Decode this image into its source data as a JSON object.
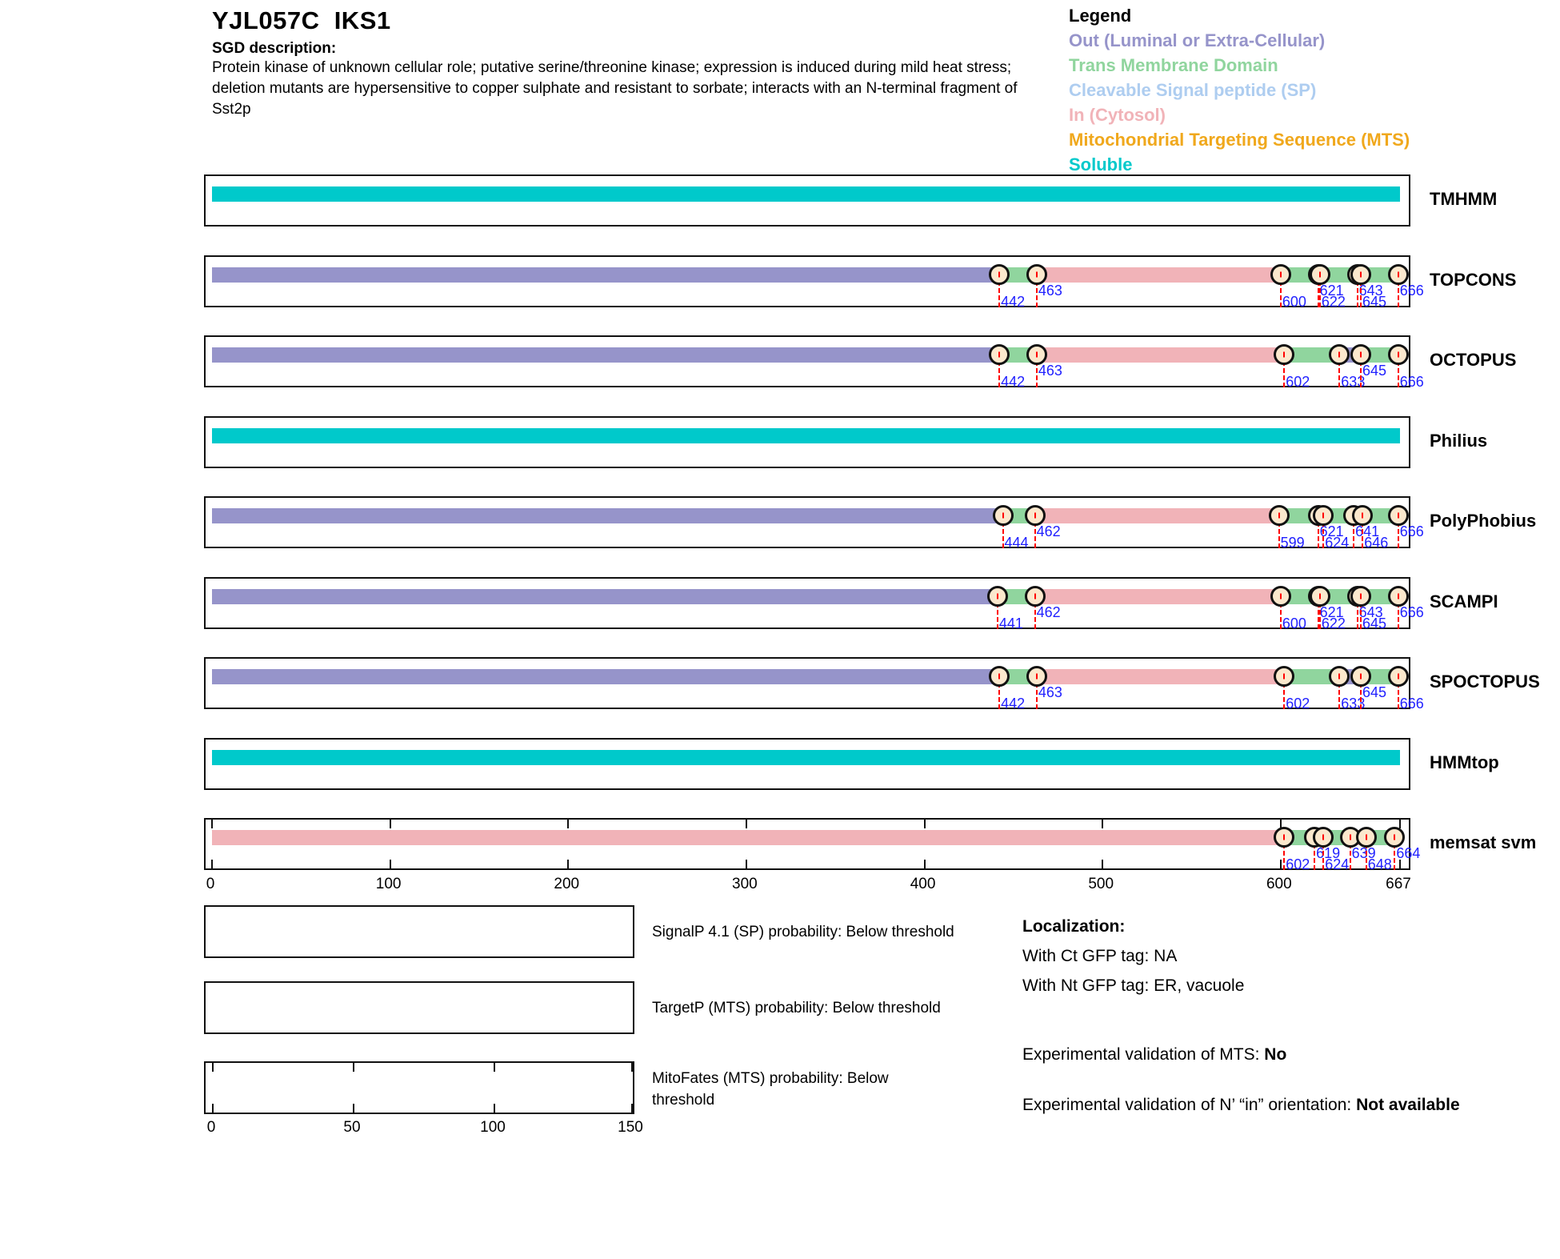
{
  "header": {
    "title": "YJL057C  IKS1",
    "sgd_label": "SGD description:",
    "description": "Protein kinase of unknown cellular role; putative serine/threonine kinase; expression is induced during mild heat stress; deletion mutants are hypersensitive to copper sulphate and resistant to sorbate; interacts with an N-terminal fragment of Sst2p"
  },
  "legend": {
    "title": "Legend",
    "items": [
      {
        "key": "out",
        "label": "Out (Luminal or Extra-Cellular)"
      },
      {
        "key": "tm",
        "label": "Trans Membrane Domain"
      },
      {
        "key": "sp",
        "label": "Cleavable Signal peptide (SP)"
      },
      {
        "key": "in",
        "label": "In (Cytosol)"
      },
      {
        "key": "mts",
        "label": "Mitochondrial Targeting Sequence (MTS)"
      },
      {
        "key": "soluble",
        "label": "Soluble"
      }
    ]
  },
  "chart_data": {
    "type": "protein-topology-tracks",
    "protein": "YJL057C IKS1",
    "sequence_length": 667,
    "axis_ticks": [
      0,
      100,
      200,
      300,
      400,
      500,
      600,
      667
    ],
    "colors": {
      "out": "#9694ca",
      "tm": "#90d59e",
      "sp": "#aecdf0",
      "in": "#f1b3b8",
      "mts": "#f0a81c",
      "soluble": "#00c9cb"
    },
    "tracks": [
      {
        "name": "TMHMM",
        "ruler": false,
        "segments": [
          {
            "start": 0,
            "end": 667,
            "type": "soluble"
          }
        ],
        "markers": []
      },
      {
        "name": "TOPCONS",
        "ruler": false,
        "segments": [
          {
            "start": 0,
            "end": 442,
            "type": "out"
          },
          {
            "start": 442,
            "end": 463,
            "type": "tm"
          },
          {
            "start": 463,
            "end": 600,
            "type": "in"
          },
          {
            "start": 600,
            "end": 621,
            "type": "tm"
          },
          {
            "start": 621,
            "end": 622,
            "type": "out"
          },
          {
            "start": 622,
            "end": 643,
            "type": "tm"
          },
          {
            "start": 643,
            "end": 645,
            "type": "in"
          },
          {
            "start": 645,
            "end": 666,
            "type": "tm"
          },
          {
            "start": 666,
            "end": 667,
            "type": "out"
          }
        ],
        "markers": [
          {
            "pos": 442,
            "row": "low"
          },
          {
            "pos": 463,
            "row": "high"
          },
          {
            "pos": 600,
            "row": "low"
          },
          {
            "pos": 621,
            "row": "high"
          },
          {
            "pos": 622,
            "row": "low"
          },
          {
            "pos": 643,
            "row": "high"
          },
          {
            "pos": 645,
            "row": "low"
          },
          {
            "pos": 666,
            "row": "high"
          }
        ]
      },
      {
        "name": "OCTOPUS",
        "ruler": false,
        "segments": [
          {
            "start": 0,
            "end": 442,
            "type": "out"
          },
          {
            "start": 442,
            "end": 463,
            "type": "tm"
          },
          {
            "start": 463,
            "end": 602,
            "type": "in"
          },
          {
            "start": 602,
            "end": 633,
            "type": "tm"
          },
          {
            "start": 633,
            "end": 645,
            "type": "out"
          },
          {
            "start": 645,
            "end": 666,
            "type": "tm"
          },
          {
            "start": 666,
            "end": 667,
            "type": "in"
          }
        ],
        "markers": [
          {
            "pos": 442,
            "row": "low"
          },
          {
            "pos": 463,
            "row": "high"
          },
          {
            "pos": 602,
            "row": "low"
          },
          {
            "pos": 633,
            "row": "low"
          },
          {
            "pos": 645,
            "row": "high"
          },
          {
            "pos": 666,
            "row": "low"
          }
        ]
      },
      {
        "name": "Philius",
        "ruler": false,
        "segments": [
          {
            "start": 0,
            "end": 667,
            "type": "soluble"
          }
        ],
        "markers": []
      },
      {
        "name": "PolyPhobius",
        "ruler": false,
        "segments": [
          {
            "start": 0,
            "end": 444,
            "type": "out"
          },
          {
            "start": 444,
            "end": 462,
            "type": "tm"
          },
          {
            "start": 462,
            "end": 599,
            "type": "in"
          },
          {
            "start": 599,
            "end": 621,
            "type": "tm"
          },
          {
            "start": 621,
            "end": 624,
            "type": "out"
          },
          {
            "start": 624,
            "end": 641,
            "type": "tm"
          },
          {
            "start": 641,
            "end": 646,
            "type": "in"
          },
          {
            "start": 646,
            "end": 666,
            "type": "tm"
          },
          {
            "start": 666,
            "end": 667,
            "type": "out"
          }
        ],
        "markers": [
          {
            "pos": 444,
            "row": "low"
          },
          {
            "pos": 462,
            "row": "high"
          },
          {
            "pos": 599,
            "row": "low"
          },
          {
            "pos": 621,
            "row": "high"
          },
          {
            "pos": 624,
            "row": "low"
          },
          {
            "pos": 641,
            "row": "high"
          },
          {
            "pos": 646,
            "row": "low"
          },
          {
            "pos": 666,
            "row": "high"
          }
        ]
      },
      {
        "name": "SCAMPI",
        "ruler": false,
        "segments": [
          {
            "start": 0,
            "end": 441,
            "type": "out"
          },
          {
            "start": 441,
            "end": 462,
            "type": "tm"
          },
          {
            "start": 462,
            "end": 600,
            "type": "in"
          },
          {
            "start": 600,
            "end": 621,
            "type": "tm"
          },
          {
            "start": 621,
            "end": 622,
            "type": "out"
          },
          {
            "start": 622,
            "end": 643,
            "type": "tm"
          },
          {
            "start": 643,
            "end": 645,
            "type": "in"
          },
          {
            "start": 645,
            "end": 666,
            "type": "tm"
          },
          {
            "start": 666,
            "end": 667,
            "type": "out"
          }
        ],
        "markers": [
          {
            "pos": 441,
            "row": "low"
          },
          {
            "pos": 462,
            "row": "high"
          },
          {
            "pos": 600,
            "row": "low"
          },
          {
            "pos": 621,
            "row": "high"
          },
          {
            "pos": 622,
            "row": "low"
          },
          {
            "pos": 643,
            "row": "high"
          },
          {
            "pos": 645,
            "row": "low"
          },
          {
            "pos": 666,
            "row": "high"
          }
        ]
      },
      {
        "name": "SPOCTOPUS",
        "ruler": false,
        "segments": [
          {
            "start": 0,
            "end": 442,
            "type": "out"
          },
          {
            "start": 442,
            "end": 463,
            "type": "tm"
          },
          {
            "start": 463,
            "end": 602,
            "type": "in"
          },
          {
            "start": 602,
            "end": 633,
            "type": "tm"
          },
          {
            "start": 633,
            "end": 645,
            "type": "out"
          },
          {
            "start": 645,
            "end": 666,
            "type": "tm"
          },
          {
            "start": 666,
            "end": 667,
            "type": "in"
          }
        ],
        "markers": [
          {
            "pos": 442,
            "row": "low"
          },
          {
            "pos": 463,
            "row": "high"
          },
          {
            "pos": 602,
            "row": "low"
          },
          {
            "pos": 633,
            "row": "low"
          },
          {
            "pos": 645,
            "row": "high"
          },
          {
            "pos": 666,
            "row": "low"
          }
        ]
      },
      {
        "name": "HMMtop",
        "ruler": false,
        "segments": [
          {
            "start": 0,
            "end": 667,
            "type": "soluble"
          }
        ],
        "markers": []
      },
      {
        "name": "memsat svm",
        "ruler": true,
        "segments": [
          {
            "start": 0,
            "end": 602,
            "type": "in"
          },
          {
            "start": 602,
            "end": 619,
            "type": "tm"
          },
          {
            "start": 619,
            "end": 624,
            "type": "out"
          },
          {
            "start": 624,
            "end": 639,
            "type": "tm"
          },
          {
            "start": 639,
            "end": 648,
            "type": "in"
          },
          {
            "start": 648,
            "end": 664,
            "type": "tm"
          },
          {
            "start": 664,
            "end": 667,
            "type": "out"
          }
        ],
        "markers": [
          {
            "pos": 602,
            "row": "low"
          },
          {
            "pos": 619,
            "row": "high"
          },
          {
            "pos": 624,
            "row": "low"
          },
          {
            "pos": 639,
            "row": "high"
          },
          {
            "pos": 648,
            "row": "low"
          },
          {
            "pos": 664,
            "row": "high"
          }
        ]
      }
    ]
  },
  "probability_panels": [
    {
      "label": "SignalP 4.1 (SP) probability: Below threshold",
      "axis_ticks": []
    },
    {
      "label": "TargetP (MTS) probability: Below threshold",
      "axis_ticks": []
    },
    {
      "label": "MitoFates (MTS) probability: Below threshold",
      "axis_ticks": [
        0,
        50,
        100,
        150
      ],
      "axis_max": 150
    }
  ],
  "localization": {
    "title": "Localization:",
    "ct_line": "With Ct GFP tag: NA",
    "nt_line": "With Nt GFP tag: ER, vacuole",
    "mts_prefix": "Experimental validation of MTS: ",
    "mts_value": "No",
    "orientation_prefix": "Experimental validation of N’ “in” orientation: ",
    "orientation_value": "Not available"
  }
}
